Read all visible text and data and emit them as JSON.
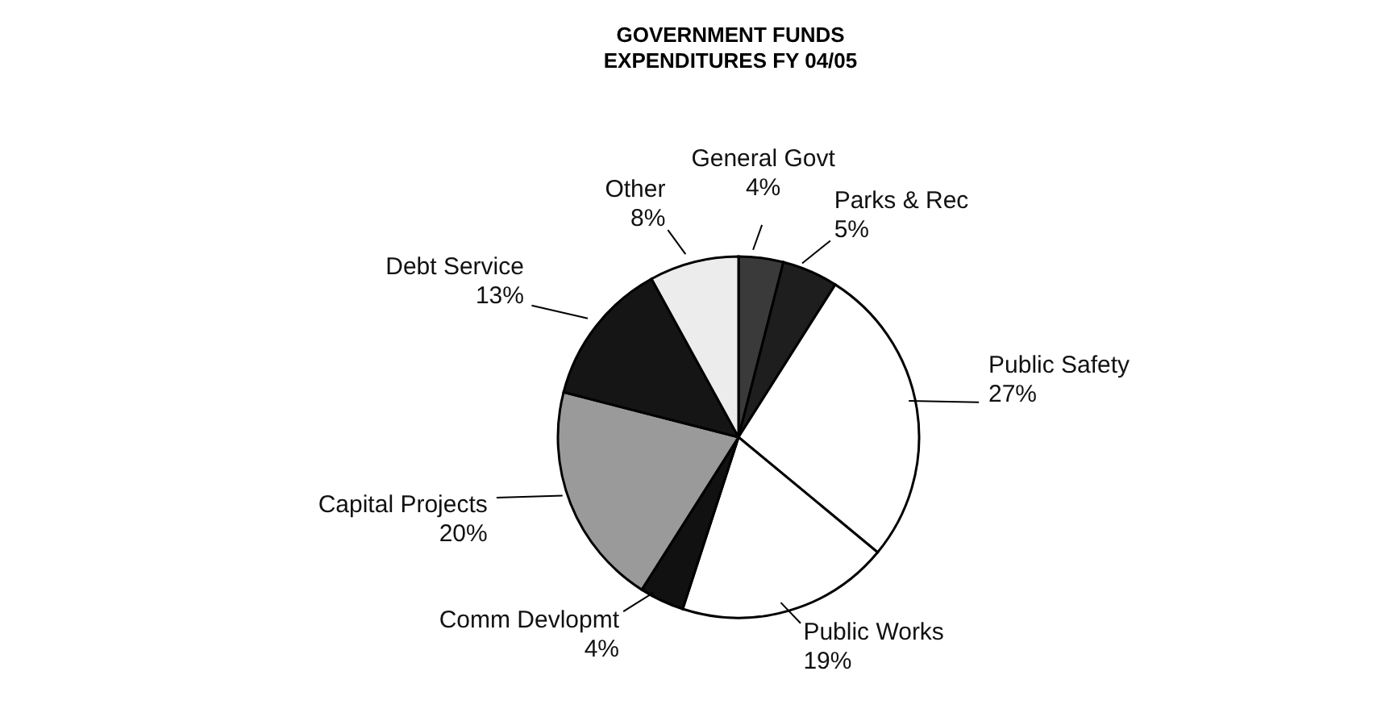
{
  "chart_data": {
    "type": "pie",
    "title": "GOVERNMENT FUNDS\nEXPENDITURES FY 04/05",
    "categories": [
      "General Govt",
      "Parks & Rec",
      "Public Safety",
      "Public Works",
      "Comm Devlopmt",
      "Capital Projects",
      "Debt Service",
      "Other"
    ],
    "values": [
      4,
      5,
      27,
      19,
      4,
      20,
      13,
      8
    ],
    "value_labels": [
      "4%",
      "5%",
      "27%",
      "19%",
      "4%",
      "20%",
      "13%",
      "8%"
    ],
    "colors": [
      "#3a3a3a",
      "#1e1e1e",
      "#ffffff",
      "#ffffff",
      "#111111",
      "#9a9a9a",
      "#151515",
      "#ececec"
    ]
  }
}
